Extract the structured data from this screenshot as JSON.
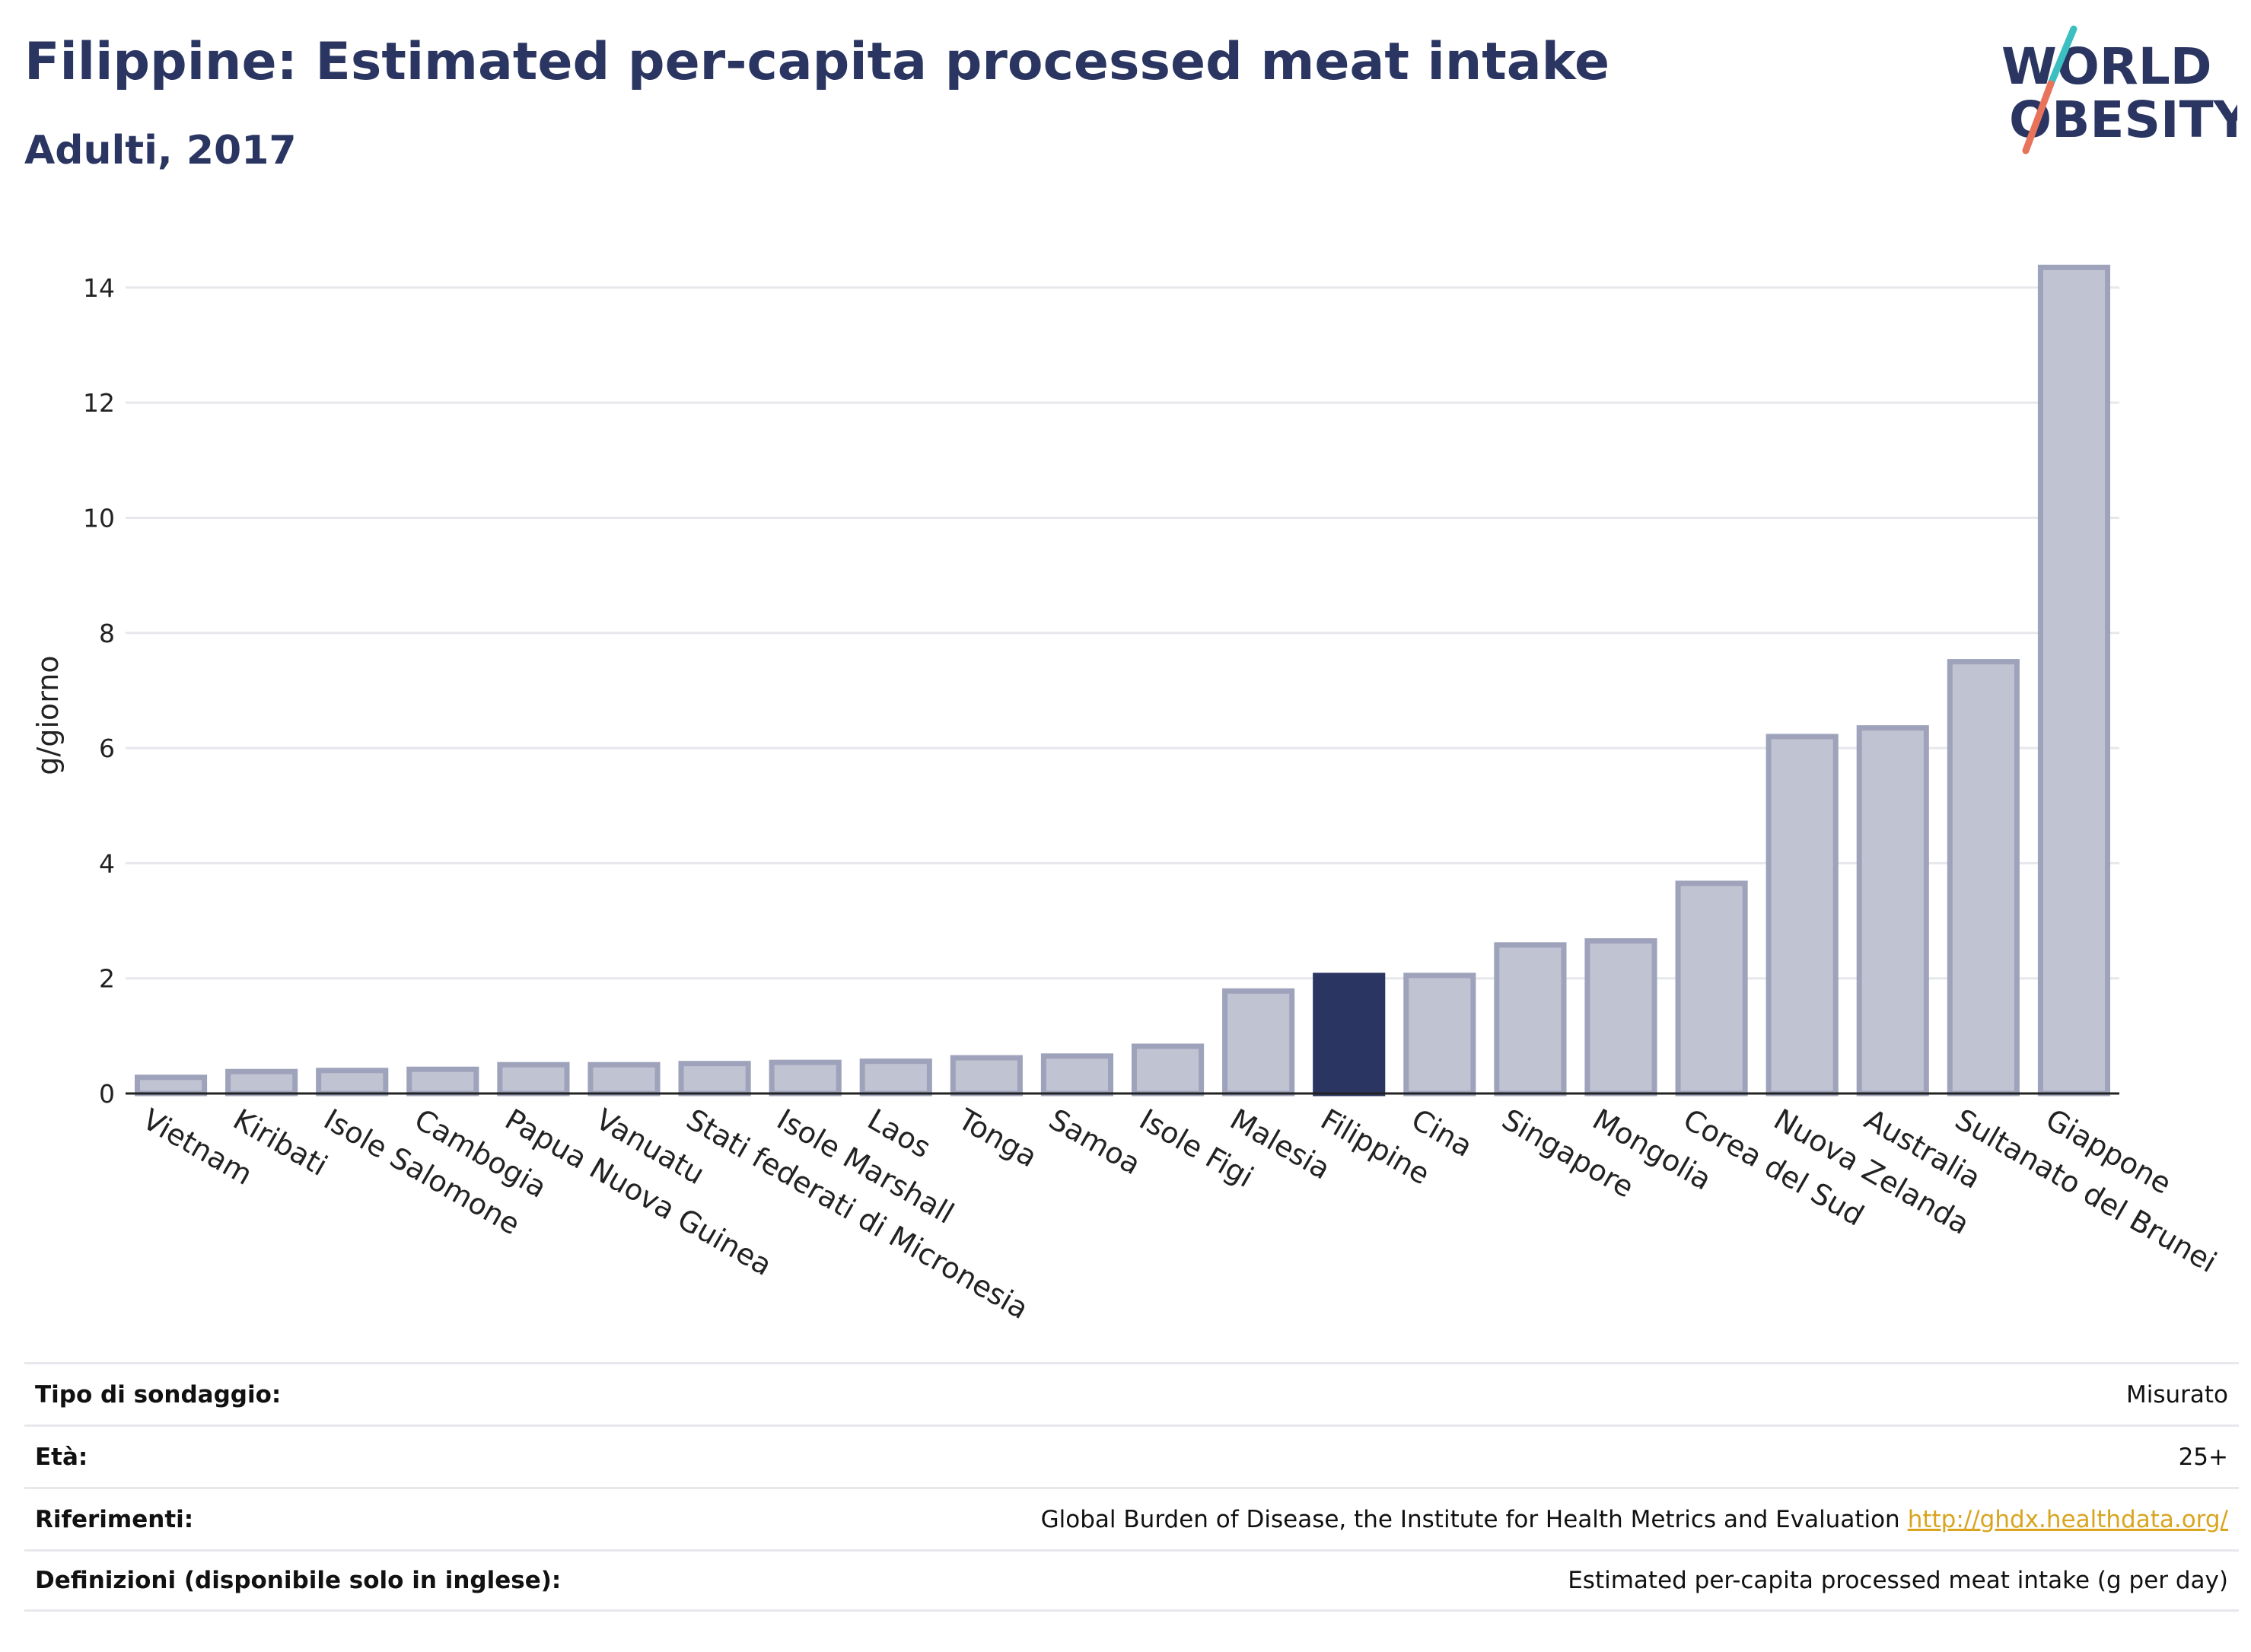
{
  "header": {
    "title": "Filippine: Estimated per-capita processed meat intake",
    "subtitle": "Adulti, 2017"
  },
  "logo": {
    "line1": "WORLD",
    "line2": "OBESITY"
  },
  "colors": {
    "highlight": "#2b3561",
    "bar_fill": "#c0c3d1",
    "bar_stroke": "#9ea3bb",
    "grid": "#e6e8ec",
    "accent_teal": "#3bbfc1",
    "accent_coral": "#e8735a"
  },
  "chart_data": {
    "type": "bar",
    "ylabel": "g/giorno",
    "ylim": [
      0,
      14.5
    ],
    "yticks": [
      0,
      2,
      4,
      6,
      8,
      10,
      12,
      14
    ],
    "highlight": "Filippine",
    "categories": [
      "Vietnam",
      "Kiribati",
      "Isole Salomone",
      "Cambogia",
      "Papua Nuova Guinea",
      "Vanuatu",
      "Stati federati di Micronesia",
      "Isole Marshall",
      "Laos",
      "Tonga",
      "Samoa",
      "Isole Figi",
      "Malesia",
      "Filippine",
      "Cina",
      "Singapore",
      "Mongolia",
      "Corea del Sud",
      "Nuova Zelanda",
      "Australia",
      "Sultanato del Brunei",
      "Giappone"
    ],
    "values": [
      0.28,
      0.38,
      0.4,
      0.42,
      0.5,
      0.5,
      0.52,
      0.54,
      0.56,
      0.62,
      0.65,
      0.82,
      1.78,
      2.05,
      2.05,
      2.58,
      2.65,
      3.65,
      6.2,
      6.35,
      7.5,
      14.35
    ]
  },
  "info": [
    {
      "key": "Tipo di sondaggio:",
      "value": "Misurato"
    },
    {
      "key": "Età:",
      "value": "25+"
    },
    {
      "key": "Riferimenti:",
      "value": "Global Burden of Disease, the Institute for Health Metrics and Evaluation",
      "link": "http://ghdx.healthdata.org/"
    },
    {
      "key": "Definizioni (disponibile solo in inglese):",
      "value": "Estimated per-capita processed meat intake (g per day)"
    }
  ]
}
